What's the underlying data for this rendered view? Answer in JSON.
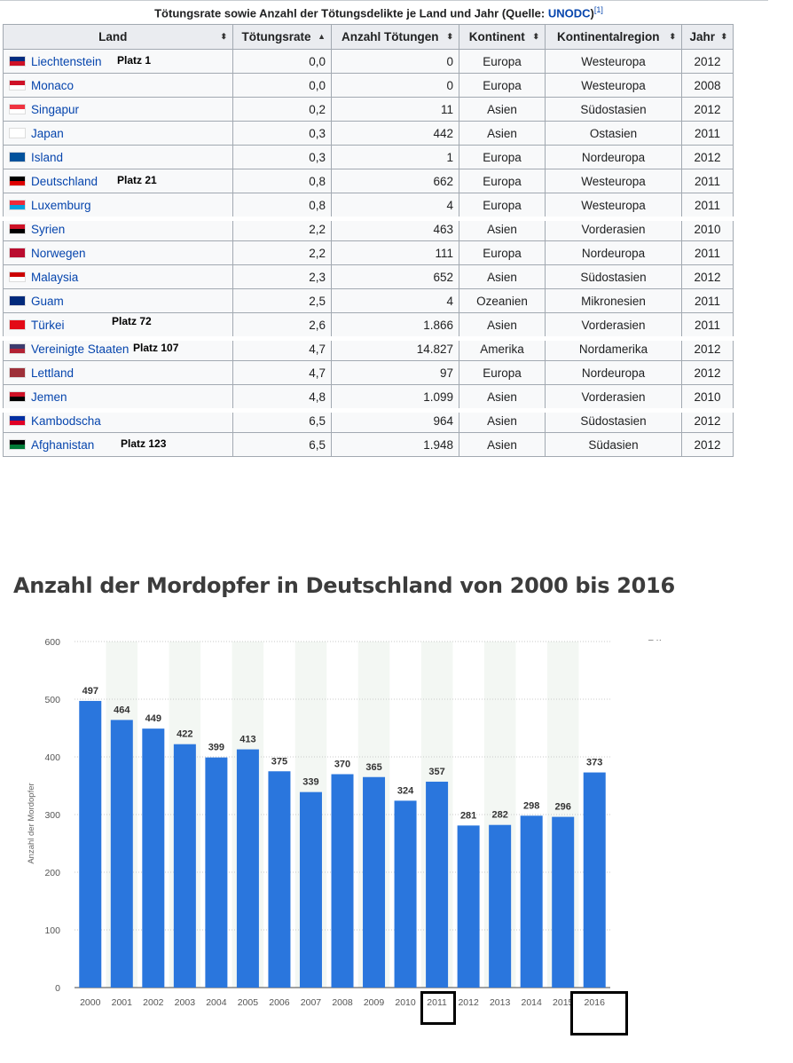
{
  "table": {
    "caption_text": "Tötungsrate sowie Anzahl der Tötungsdelikte je Land und Jahr (Quelle: ",
    "caption_link": "UNODC",
    "caption_close": ")",
    "caption_ref": "[1]",
    "headers": [
      "Land",
      "Tötungsrate",
      "Anzahl Tötungen",
      "Kontinent",
      "Kontinentalregion",
      "Jahr"
    ],
    "sort_icons": [
      "⬍",
      "▲",
      "⬍",
      "⬍",
      "⬍",
      "⬍"
    ],
    "rows": [
      {
        "land": "Liechtenstein",
        "rate": "0,0",
        "anzahl": "0",
        "kontinent": "Europa",
        "region": "Westeuropa",
        "jahr": "2012",
        "platz": "Platz 1",
        "flag": [
          "#002b7f",
          "#ce1126"
        ]
      },
      {
        "land": "Monaco",
        "rate": "0,0",
        "anzahl": "0",
        "kontinent": "Europa",
        "region": "Westeuropa",
        "jahr": "2008",
        "platz": "",
        "flag": [
          "#ce1126",
          "#ffffff"
        ]
      },
      {
        "land": "Singapur",
        "rate": "0,2",
        "anzahl": "11",
        "kontinent": "Asien",
        "region": "Südostasien",
        "jahr": "2012",
        "platz": "",
        "flag": [
          "#ef3340",
          "#ffffff"
        ]
      },
      {
        "land": "Japan",
        "rate": "0,3",
        "anzahl": "442",
        "kontinent": "Asien",
        "region": "Ostasien",
        "jahr": "2011",
        "platz": "",
        "flag": [
          "#ffffff",
          "#ffffff"
        ]
      },
      {
        "land": "Island",
        "rate": "0,3",
        "anzahl": "1",
        "kontinent": "Europa",
        "region": "Nordeuropa",
        "jahr": "2012",
        "platz": "",
        "flag": [
          "#02529c",
          "#02529c"
        ]
      },
      {
        "land": "Deutschland",
        "rate": "0,8",
        "anzahl": "662",
        "kontinent": "Europa",
        "region": "Westeuropa",
        "jahr": "2011",
        "platz": "Platz 21",
        "flag": [
          "#000000",
          "#dd0000"
        ]
      },
      {
        "land": "Luxemburg",
        "rate": "0,8",
        "anzahl": "4",
        "kontinent": "Europa",
        "region": "Westeuropa",
        "jahr": "2011",
        "platz": "",
        "flag": [
          "#ed2939",
          "#00a1de"
        ]
      },
      {
        "land": "Syrien",
        "rate": "2,2",
        "anzahl": "463",
        "kontinent": "Asien",
        "region": "Vorderasien",
        "jahr": "2010",
        "platz": "",
        "flag": [
          "#ce1126",
          "#000000"
        ]
      },
      {
        "land": "Norwegen",
        "rate": "2,2",
        "anzahl": "111",
        "kontinent": "Europa",
        "region": "Nordeuropa",
        "jahr": "2011",
        "platz": "",
        "flag": [
          "#ba0c2f",
          "#ba0c2f"
        ]
      },
      {
        "land": "Malaysia",
        "rate": "2,3",
        "anzahl": "652",
        "kontinent": "Asien",
        "region": "Südostasien",
        "jahr": "2012",
        "platz": "",
        "flag": [
          "#cc0001",
          "#ffffff"
        ]
      },
      {
        "land": "Guam",
        "rate": "2,5",
        "anzahl": "4",
        "kontinent": "Ozeanien",
        "region": "Mikronesien",
        "jahr": "2011",
        "platz": "",
        "flag": [
          "#00297b",
          "#00297b"
        ]
      },
      {
        "land": "Türkei",
        "rate": "2,6",
        "anzahl": "1.866",
        "kontinent": "Asien",
        "region": "Vorderasien",
        "jahr": "2011",
        "platz": "Platz 72",
        "flag": [
          "#e30a17",
          "#e30a17"
        ]
      },
      {
        "land": "Vereinigte Staaten",
        "rate": "4,7",
        "anzahl": "14.827",
        "kontinent": "Amerika",
        "region": "Nordamerika",
        "jahr": "2012",
        "platz": "Platz 107",
        "flag": [
          "#3c3b6e",
          "#b22234"
        ]
      },
      {
        "land": "Lettland",
        "rate": "4,7",
        "anzahl": "97",
        "kontinent": "Europa",
        "region": "Nordeuropa",
        "jahr": "2012",
        "platz": "",
        "flag": [
          "#9e3039",
          "#9e3039"
        ]
      },
      {
        "land": "Jemen",
        "rate": "4,8",
        "anzahl": "1.099",
        "kontinent": "Asien",
        "region": "Vorderasien",
        "jahr": "2010",
        "platz": "",
        "flag": [
          "#ce1126",
          "#000000"
        ]
      },
      {
        "land": "Kambodscha",
        "rate": "6,5",
        "anzahl": "964",
        "kontinent": "Asien",
        "region": "Südostasien",
        "jahr": "2012",
        "platz": "",
        "flag": [
          "#032ea1",
          "#e00025"
        ]
      },
      {
        "land": "Afghanistan",
        "rate": "6,5",
        "anzahl": "1.948",
        "kontinent": "Asien",
        "region": "Südasien",
        "jahr": "2012",
        "platz": "Platz 123",
        "flag": [
          "#000000",
          "#007a36"
        ]
      }
    ]
  },
  "chart_title": "Anzahl der Mordopfer in Deutschland von 2000 bis 2016",
  "legend_fragment": "– ··",
  "chart_data": {
    "type": "bar",
    "title": "Anzahl der Mordopfer in Deutschland von 2000 bis 2016",
    "xlabel": "",
    "ylabel": "Anzahl der Mordopfer",
    "ylim": [
      0,
      600
    ],
    "yticks": [
      0,
      100,
      200,
      300,
      400,
      500,
      600
    ],
    "categories": [
      "2000",
      "2001",
      "2002",
      "2003",
      "2004",
      "2005",
      "2006",
      "2007",
      "2008",
      "2009",
      "2010",
      "2011",
      "2012",
      "2013",
      "2014",
      "2015",
      "2016"
    ],
    "values": [
      497,
      464,
      449,
      422,
      399,
      413,
      375,
      339,
      370,
      365,
      324,
      357,
      281,
      282,
      298,
      296,
      373
    ],
    "grid": true,
    "bar_color": "#2a76dd",
    "highlighted_categories": [
      "2011",
      "2016"
    ]
  }
}
